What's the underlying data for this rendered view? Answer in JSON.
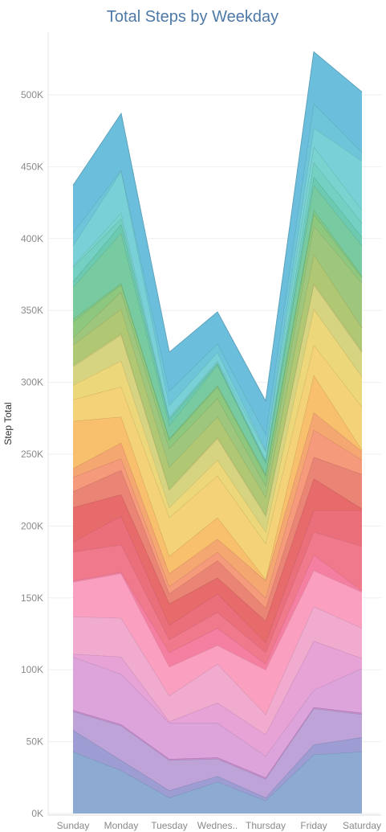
{
  "chart_data": {
    "type": "area",
    "stacked": true,
    "title": "Total Steps by Weekday",
    "ylabel": "Step Total",
    "xlabel": "",
    "categories": [
      "Sunday",
      "Monday",
      "Tuesday",
      "Wednes..",
      "Thursday",
      "Friday",
      "Saturday"
    ],
    "ylim": [
      0,
      530000
    ],
    "yticks": [
      0,
      50000,
      100000,
      150000,
      200000,
      250000,
      300000,
      350000,
      400000,
      450000,
      500000
    ],
    "ytick_labels": [
      "0K",
      "50K",
      "100K",
      "150K",
      "200K",
      "250K",
      "300K",
      "350K",
      "400K",
      "450K",
      "500K"
    ],
    "grid": true,
    "series": [
      {
        "values": [
          43000,
          30000,
          11000,
          22000,
          9000,
          41000,
          43000
        ],
        "color": "#8daad3"
      },
      {
        "values": [
          15000,
          7000,
          5000,
          4000,
          2000,
          7000,
          10000
        ],
        "color": "#9d9dd4"
      },
      {
        "values": [
          13000,
          24000,
          21000,
          12000,
          13000,
          25000,
          16000
        ],
        "color": "#bda3d8"
      },
      {
        "values": [
          1000,
          1000,
          1000,
          1000,
          1000,
          1000,
          1000
        ],
        "color": "#c68ccc"
      },
      {
        "values": [
          37000,
          35000,
          25000,
          24000,
          15000,
          12000,
          31000
        ],
        "color": "#dca4da"
      },
      {
        "values": [
          2000,
          12000,
          1000,
          14000,
          15000,
          34000,
          7000
        ],
        "color": "#e7a3d6"
      },
      {
        "values": [
          26000,
          27000,
          18000,
          27000,
          14000,
          24000,
          21000
        ],
        "color": "#f0abcf"
      },
      {
        "values": [
          24000,
          31000,
          20000,
          13000,
          31000,
          25000,
          25000
        ],
        "color": "#fb9fc0"
      },
      {
        "values": [
          1000,
          1000,
          10000,
          12000,
          4000,
          11000,
          1000
        ],
        "color": "#f57fa0"
      },
      {
        "values": [
          20000,
          19000,
          9000,
          11000,
          8000,
          16000,
          31000
        ],
        "color": "#f07a8c"
      },
      {
        "values": [
          7000,
          20000,
          10000,
          13000,
          7000,
          15000,
          25000
        ],
        "color": "#ea6f7a"
      },
      {
        "values": [
          24000,
          15000,
          15000,
          11000,
          15000,
          22000,
          1000
        ],
        "color": "#e76b6b"
      },
      {
        "values": [
          11000,
          17000,
          7000,
          12000,
          9000,
          15000,
          24000
        ],
        "color": "#ea8575"
      },
      {
        "values": [
          10000,
          8000,
          5000,
          6000,
          7000,
          19000,
          10000
        ],
        "color": "#f59a7a"
      },
      {
        "values": [
          6000,
          11000,
          9000,
          9000,
          12000,
          12000,
          6000
        ],
        "color": "#f5a772"
      },
      {
        "values": [
          33000,
          18000,
          12000,
          15000,
          1000,
          26000,
          1000
        ],
        "color": "#f8c06d"
      },
      {
        "values": [
          15000,
          21000,
          27000,
          29000,
          25000,
          21000,
          30000
        ],
        "color": "#f4d278"
      },
      {
        "values": [
          10000,
          18000,
          7000,
          11000,
          8000,
          25000,
          21000
        ],
        "color": "#ecd77a"
      },
      {
        "values": [
          13000,
          18000,
          12000,
          15000,
          11000,
          17000,
          17000
        ],
        "color": "#d6d381"
      },
      {
        "values": [
          1000,
          1000,
          1000,
          1000,
          1000,
          1000,
          1000
        ],
        "color": "#c2cf7a"
      },
      {
        "values": [
          14000,
          17000,
          15000,
          14000,
          12000,
          20000,
          16000
        ],
        "color": "#b0c874"
      },
      {
        "values": [
          5000,
          12000,
          13000,
          13000,
          8000,
          20000,
          31000
        ],
        "color": "#9fc67d"
      },
      {
        "values": [
          11000,
          5000,
          6000,
          8000,
          7000,
          8000,
          4000
        ],
        "color": "#8ec87e"
      },
      {
        "values": [
          2000,
          1000,
          1000,
          1000,
          1000,
          3000,
          1000
        ],
        "color": "#7fc88a"
      },
      {
        "values": [
          22000,
          35000,
          9000,
          14000,
          8000,
          17000,
          21000
        ],
        "color": "#78cba1"
      },
      {
        "values": [
          4000,
          6000,
          4000,
          1000,
          1000,
          6000,
          6000
        ],
        "color": "#6ccab1"
      },
      {
        "values": [
          10000,
          4000,
          1000,
          1000,
          1000,
          10000,
          10000
        ],
        "color": "#74d0c2"
      },
      {
        "values": [
          1000,
          4000,
          1000,
          1000,
          6000,
          11000,
          9000
        ],
        "color": "#7bd3d0"
      },
      {
        "values": [
          14000,
          29000,
          8000,
          6000,
          1000,
          13000,
          34000
        ],
        "color": "#79d0d6"
      },
      {
        "values": [
          9000,
          1000,
          10000,
          6000,
          11000,
          17000,
          6000
        ],
        "color": "#6ec4d8"
      },
      {
        "values": [
          33000,
          39000,
          27000,
          22000,
          23000,
          36000,
          42000
        ],
        "color": "#6cbfdc"
      }
    ]
  }
}
